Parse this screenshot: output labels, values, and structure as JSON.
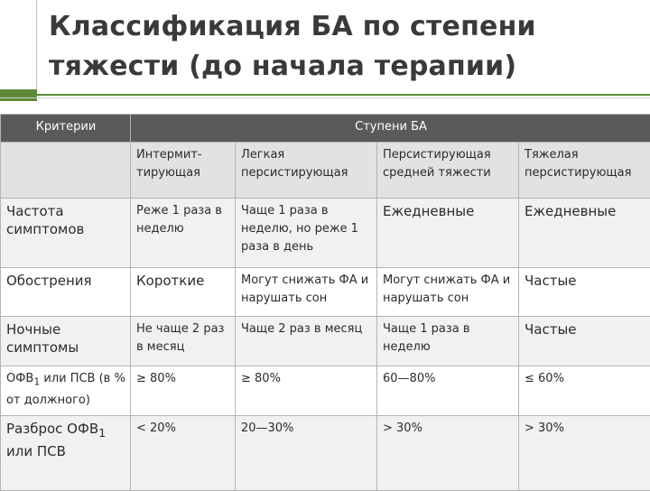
{
  "title": {
    "line1": "Классификация БА по степени",
    "line2": "тяжести (до начала терапии)"
  },
  "table": {
    "header": {
      "criteria": "Критерии",
      "stages": "Ступени БА"
    },
    "stage_names": [
      "Интермит-тирующая",
      "Легкая персистирующая",
      "Персистирующая средней тяжести",
      "Тяжелая персистирующая"
    ],
    "rows": [
      {
        "criterion": "Частота симптомов",
        "cells": [
          "Реже 1 раза в неделю",
          "Чаще 1 раза в неделю, но реже 1 раза в день",
          "Ежедневные",
          "Ежедневные"
        ]
      },
      {
        "criterion": "Обострения",
        "cells": [
          "Короткие",
          "Могут снижать ФА и нарушать сон",
          "Могут снижать ФА и нарушать сон",
          "Частые"
        ]
      },
      {
        "criterion": "Ночные симптомы",
        "cells": [
          "Не чаще 2 раз в месяц",
          "Чаще 2 раз в месяц",
          "Чаще 1 раза в неделю",
          "Частые"
        ]
      },
      {
        "criterion_prefix": "ОФВ",
        "criterion_sub": "1",
        "criterion_suffix": " или ПСВ (в % от должного)",
        "cells": [
          "≥ 80%",
          "≥ 80%",
          "60—80%",
          "≤ 60%"
        ]
      },
      {
        "criterion_prefix": "Разброс ОФВ",
        "criterion_sub": "1",
        "criterion_suffix": " или ПСВ",
        "cells": [
          "< 20%",
          "20—30%",
          "> 30%",
          "> 30%"
        ]
      }
    ]
  }
}
